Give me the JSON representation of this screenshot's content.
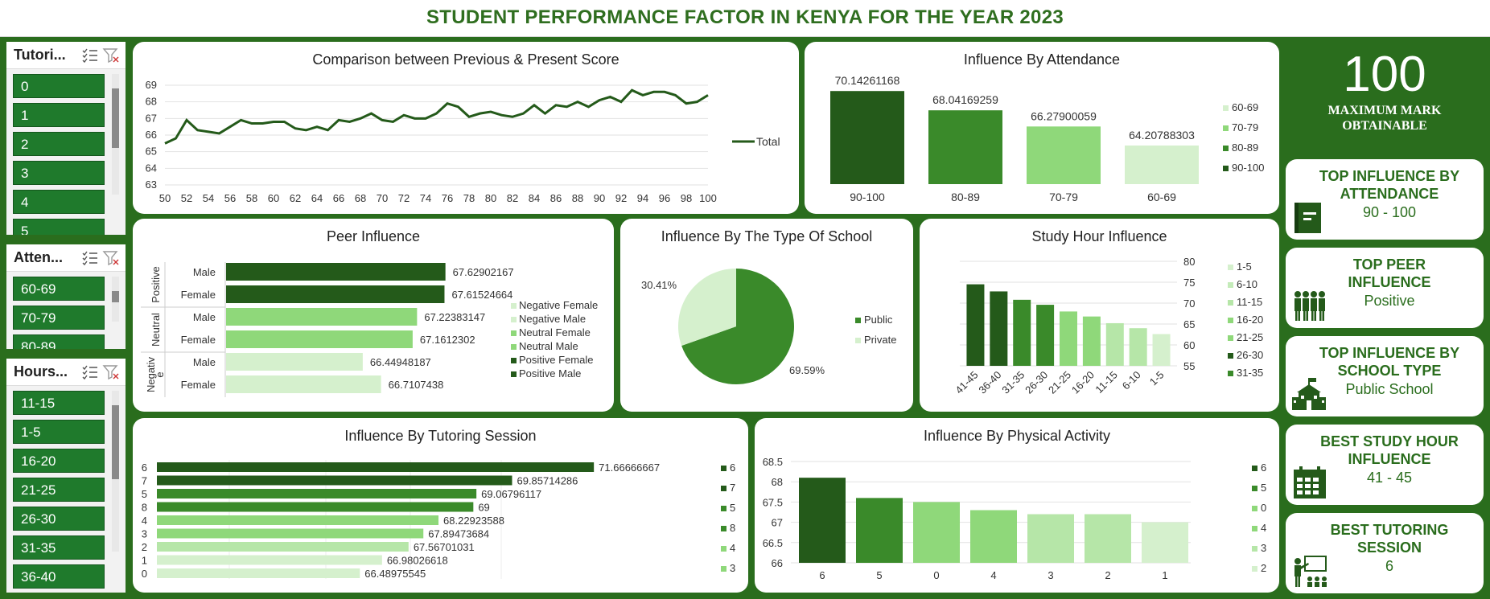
{
  "header": {
    "title": "STUDENT PERFORMANCE FACTOR IN KENYA FOR THE YEAR 2023"
  },
  "colors": {
    "dark": "#245a1a",
    "mid": "#3a8a2a",
    "light": "#8fd87a",
    "pale": "#d5f0cd",
    "bg": "#2a6d1d"
  },
  "slicers": [
    {
      "title": "Tutori...",
      "items": [
        "0",
        "1",
        "2",
        "3",
        "4",
        "5"
      ]
    },
    {
      "title": "Atten...",
      "items": [
        "60-69",
        "70-79",
        "80-89"
      ]
    },
    {
      "title": "Hours...",
      "items": [
        "11-15",
        "1-5",
        "16-20",
        "21-25",
        "26-30",
        "31-35",
        "36-40"
      ]
    }
  ],
  "slicer_icons": [
    "multi-select-icon",
    "clear-filter-icon"
  ],
  "kpis": {
    "max_mark": {
      "value": "100",
      "label_line1": "MAXIMUM MARK",
      "label_line2": "OBTAINABLE"
    },
    "cards": [
      {
        "title_line1": "TOP INFLUENCE BY",
        "title_line2": "ATTENDANCE",
        "value": "90 - 100",
        "icon": "notebook-icon"
      },
      {
        "title_line1": "TOP PEER",
        "title_line2": "INFLUENCE",
        "value": "Positive",
        "icon": "group-people-icon"
      },
      {
        "title_line1": "TOP INFLUENCE BY",
        "title_line2": "SCHOOL TYPE",
        "value": "Public School",
        "icon": "school-building-icon"
      },
      {
        "title_line1": "BEST STUDY HOUR",
        "title_line2": "INFLUENCE",
        "value": "41 - 45",
        "icon": "calendar-icon"
      },
      {
        "title_line1": "BEST TUTORING",
        "title_line2": "SESSION",
        "value": "6",
        "icon": "teacher-board-icon"
      }
    ]
  },
  "chart_data": [
    {
      "id": "prev_present",
      "type": "line",
      "title": "Comparison between Previous & Present Score",
      "legend": [
        "Total"
      ],
      "x_ticks": [
        "50",
        "52",
        "54",
        "56",
        "58",
        "60",
        "62",
        "64",
        "66",
        "68",
        "70",
        "72",
        "74",
        "76",
        "78",
        "80",
        "82",
        "84",
        "86",
        "88",
        "90",
        "92",
        "94",
        "96",
        "98",
        "100"
      ],
      "y_ticks": [
        "63",
        "64",
        "65",
        "66",
        "67",
        "68",
        "69"
      ],
      "ylim": [
        63,
        69
      ],
      "xlim": [
        50,
        100
      ],
      "x": [
        50,
        51,
        52,
        53,
        54,
        55,
        56,
        57,
        58,
        59,
        60,
        61,
        62,
        63,
        64,
        65,
        66,
        67,
        68,
        69,
        70,
        71,
        72,
        73,
        74,
        75,
        76,
        77,
        78,
        79,
        80,
        81,
        82,
        83,
        84,
        85,
        86,
        87,
        88,
        89,
        90,
        91,
        92,
        93,
        94,
        95,
        96,
        97,
        98,
        99,
        100
      ],
      "values": [
        65.5,
        65.8,
        66.9,
        66.3,
        66.2,
        66.1,
        66.5,
        66.9,
        66.7,
        66.7,
        66.8,
        66.8,
        66.4,
        66.3,
        66.5,
        66.3,
        66.9,
        66.8,
        67.0,
        67.3,
        66.9,
        66.8,
        67.2,
        67.0,
        67.0,
        67.3,
        67.9,
        67.7,
        67.1,
        67.3,
        67.4,
        67.2,
        67.1,
        67.3,
        67.8,
        67.3,
        67.8,
        67.7,
        68.0,
        67.7,
        68.1,
        68.3,
        68.0,
        68.7,
        68.4,
        68.6,
        68.6,
        68.4,
        67.9,
        68.0,
        68.4
      ]
    },
    {
      "id": "attendance",
      "type": "bar",
      "title": "Influence By Attendance",
      "categories": [
        "90-100",
        "80-89",
        "70-79",
        "60-69"
      ],
      "values": [
        70.14261168,
        68.04169259,
        66.27900059,
        64.20788303
      ],
      "labels": [
        "70.14261168",
        "68.04169259",
        "66.27900059",
        "64.20788303"
      ],
      "legend": [
        "60-69",
        "70-79",
        "80-89",
        "90-100"
      ],
      "ylim": [
        60,
        72
      ]
    },
    {
      "id": "peer",
      "type": "bar",
      "title": "Peer Influence",
      "groups": [
        "Positive",
        "Neutral",
        "Negative"
      ],
      "group_labels": [
        "Positive",
        "Neutral",
        "Negativ",
        "e"
      ],
      "rows": [
        {
          "group": "Positive",
          "category": "Male",
          "value": 67.62902167,
          "label": "67.62902167"
        },
        {
          "group": "Positive",
          "category": "Female",
          "value": 67.61524664,
          "label": "67.61524664"
        },
        {
          "group": "Neutral",
          "category": "Male",
          "value": 67.22383147,
          "label": "67.22383147"
        },
        {
          "group": "Neutral",
          "category": "Female",
          "value": 67.1612302,
          "label": "67.1612302"
        },
        {
          "group": "Negative",
          "category": "Male",
          "value": 66.44948187,
          "label": "66.44948187"
        },
        {
          "group": "Negative",
          "category": "Female",
          "value": 66.7107438,
          "label": "66.7107438"
        }
      ],
      "legend": [
        "Negative Female",
        "Negative Male",
        "Neutral Female",
        "Neutral Male",
        "Positive Female",
        "Positive Male"
      ],
      "xlim": [
        64.5,
        68
      ]
    },
    {
      "id": "school",
      "type": "pie",
      "title": "Influence By The Type Of School",
      "categories": [
        "Public",
        "Private"
      ],
      "values": [
        69.59,
        30.41
      ],
      "labels": [
        "69.59%",
        "30.41%"
      ],
      "legend": [
        "Public",
        "Private"
      ]
    },
    {
      "id": "study",
      "type": "bar",
      "title": "Study Hour Influence",
      "categories": [
        "41-45",
        "36-40",
        "31-35",
        "26-30",
        "21-25",
        "16-20",
        "11-15",
        "6-10",
        "1-5"
      ],
      "values": [
        74.5,
        72.8,
        70.8,
        69.6,
        68.0,
        66.8,
        65.2,
        64.0,
        62.6
      ],
      "y_ticks": [
        "55",
        "60",
        "65",
        "70",
        "75",
        "80"
      ],
      "ylim": [
        55,
        80
      ],
      "legend": [
        "1-5",
        "6-10",
        "11-15",
        "16-20",
        "21-25",
        "26-30",
        "31-35"
      ]
    },
    {
      "id": "tutoring",
      "type": "bar",
      "title": "Influence By Tutoring Session",
      "categories": [
        "6",
        "7",
        "5",
        "8",
        "4",
        "3",
        "2",
        "1",
        "0"
      ],
      "values": [
        71.66666667,
        69.85714286,
        69.06796117,
        69,
        68.22923588,
        67.89473684,
        67.56701031,
        66.98026618,
        66.48975545
      ],
      "labels": [
        "71.66666667",
        "69.85714286",
        "69.06796117",
        "69",
        "68.22923588",
        "67.89473684",
        "67.56701031",
        "66.98026618",
        "66.48975545"
      ],
      "legend": [
        "6",
        "7",
        "5",
        "8",
        "4",
        "3"
      ],
      "xlim": [
        62,
        72.5
      ]
    },
    {
      "id": "physical",
      "type": "bar",
      "title": "Influence By Physical Activity",
      "categories": [
        "6",
        "5",
        "0",
        "4",
        "3",
        "2",
        "1"
      ],
      "values": [
        68.1,
        67.6,
        67.5,
        67.3,
        67.2,
        67.2,
        67.0
      ],
      "y_ticks": [
        "66",
        "66.5",
        "67",
        "67.5",
        "68",
        "68.5"
      ],
      "ylim": [
        66,
        68.5
      ],
      "legend": [
        "6",
        "5",
        "0",
        "4",
        "3",
        "2"
      ]
    }
  ]
}
